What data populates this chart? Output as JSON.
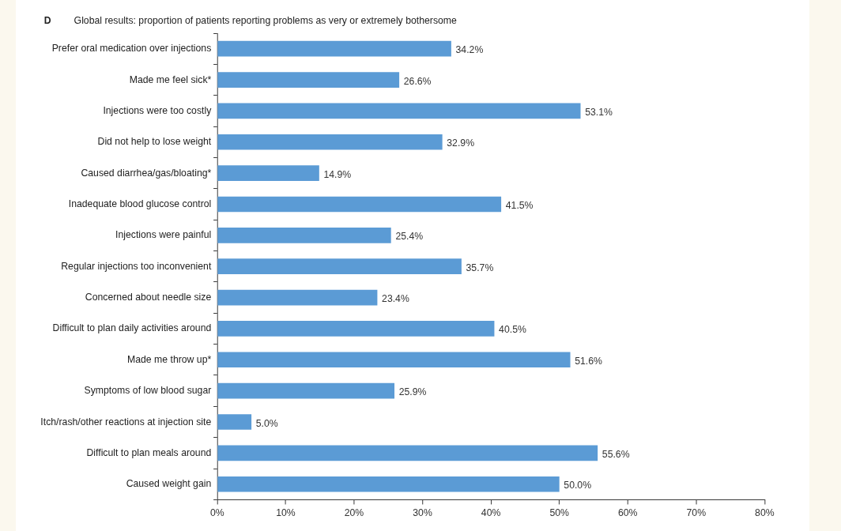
{
  "chart_data": {
    "type": "bar",
    "orientation": "horizontal",
    "title": "Global results: proportion of patients reporting problems as very or extremely bothersome",
    "annotations": [
      "D"
    ],
    "categories": [
      "Prefer oral medication over injections",
      "Made me feel sick*",
      "Injections were too costly",
      "Did not help to lose weight",
      "Caused diarrhea/gas/bloating*",
      "Inadequate blood glucose control",
      "Injections were painful",
      "Regular injections too inconvenient",
      "Concerned about needle size",
      "Difficult to plan daily activities around",
      "Made me throw up*",
      "Symptoms of low blood sugar",
      "Itch/rash/other reactions at injection site",
      "Difficult to plan meals around",
      "Caused weight gain"
    ],
    "values": [
      34.2,
      26.6,
      53.1,
      32.9,
      14.9,
      41.5,
      25.4,
      35.7,
      23.4,
      40.5,
      51.6,
      25.9,
      5.0,
      55.6,
      50.0
    ],
    "value_labels": [
      "34.2%",
      "26.6%",
      "53.1%",
      "32.9%",
      "14.9%",
      "41.5%",
      "25.4%",
      "35.7%",
      "23.4%",
      "40.5%",
      "51.6%",
      "25.9%",
      "5.0%",
      "55.6%",
      "50.0%"
    ],
    "color": "#5b9bd5",
    "xlim": [
      0,
      80
    ],
    "xticks": [
      {
        "value": 0,
        "label": "0%"
      },
      {
        "value": 10,
        "label": "10%"
      },
      {
        "value": 20,
        "label": "20%"
      },
      {
        "value": 30,
        "label": "30%"
      },
      {
        "value": 40,
        "label": "40%"
      },
      {
        "value": 50,
        "label": "50%"
      },
      {
        "value": 60,
        "label": "60%"
      },
      {
        "value": 70,
        "label": "70%"
      },
      {
        "value": 80,
        "label": "80%"
      }
    ],
    "grid": false,
    "legend": false
  }
}
